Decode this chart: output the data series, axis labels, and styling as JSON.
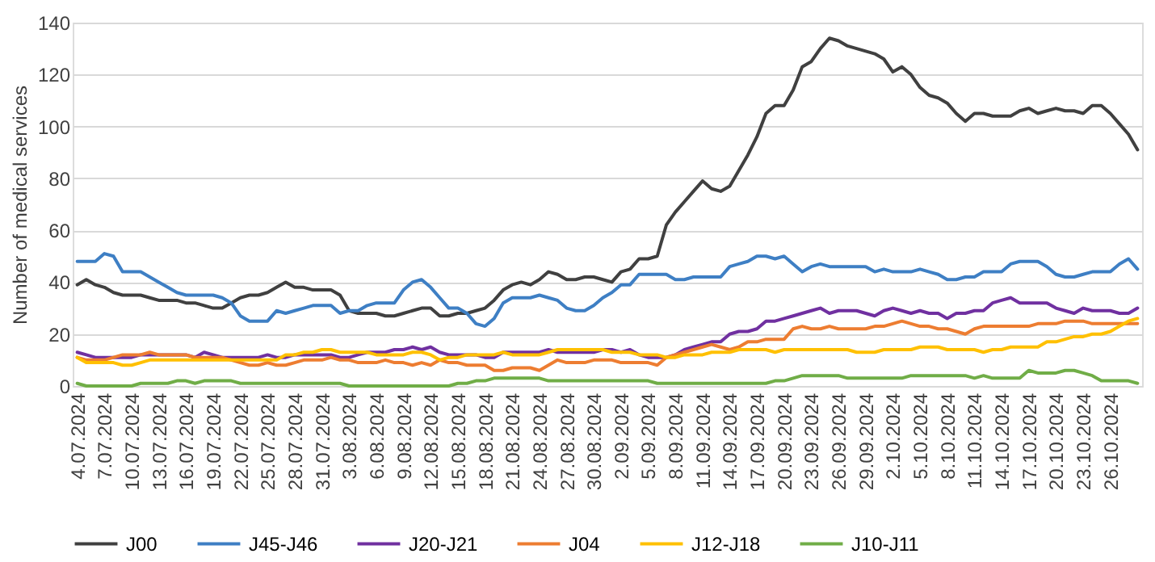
{
  "chart_data": {
    "type": "line",
    "ylabel": "Number of medical services",
    "categories": [
      "4.07.2024",
      null,
      null,
      "7.07.2024",
      null,
      null,
      "10.07.2024",
      null,
      null,
      "13.07.2024",
      null,
      null,
      "16.07.2024",
      null,
      null,
      "19.07.2024",
      null,
      null,
      "22.07.2024",
      null,
      null,
      "25.07.2024",
      null,
      null,
      "28.07.2024",
      null,
      null,
      "31.07.2024",
      null,
      null,
      "3.08.2024",
      null,
      null,
      "6.08.2024",
      null,
      null,
      "9.08.2024",
      null,
      null,
      "12.08.2024",
      null,
      null,
      "15.08.2024",
      null,
      null,
      "18.08.2024",
      null,
      null,
      "21.08.2024",
      null,
      null,
      "24.08.2024",
      null,
      null,
      "27.08.2024",
      null,
      null,
      "30.08.2024",
      null,
      null,
      "2.09.2024",
      null,
      null,
      "5.09.2024",
      null,
      null,
      "8.09.2024",
      null,
      null,
      "11.09.2024",
      null,
      null,
      "14.09.2024",
      null,
      null,
      "17.09.2024",
      null,
      null,
      "20.09.2024",
      null,
      null,
      "23.09.2024",
      null,
      null,
      "26.09.2024",
      null,
      null,
      "29.09.2024",
      null,
      null,
      "2.10.2024",
      null,
      null,
      "5.10.2024",
      null,
      null,
      "8.10.2024",
      null,
      null,
      "11.10.2024",
      null,
      null,
      "14.10.2024",
      null,
      null,
      "17.10.2024",
      null,
      null,
      "20.10.2024",
      null,
      null,
      "23.10.2024",
      null,
      null,
      "26.10.2024",
      null,
      null,
      null
    ],
    "series": [
      {
        "name": "J00",
        "color": "#404040",
        "values": [
          39,
          41,
          39,
          38,
          36,
          35,
          35,
          35,
          34,
          33,
          33,
          33,
          32,
          32,
          31,
          30,
          30,
          32,
          34,
          35,
          35,
          36,
          38,
          40,
          38,
          38,
          37,
          37,
          37,
          35,
          29,
          28,
          28,
          28,
          27,
          27,
          28,
          29,
          30,
          30,
          27,
          27,
          28,
          28,
          29,
          30,
          33,
          37,
          39,
          40,
          39,
          41,
          44,
          43,
          41,
          41,
          42,
          42,
          41,
          40,
          44,
          45,
          49,
          49,
          50,
          62,
          67,
          71,
          75,
          79,
          76,
          75,
          77,
          83,
          89,
          96,
          105,
          108,
          108,
          114,
          123,
          125,
          130,
          134,
          133,
          131,
          130,
          129,
          128,
          126,
          121,
          123,
          120,
          115,
          112,
          111,
          109,
          105,
          102,
          105,
          105,
          104,
          104,
          104,
          106,
          107,
          105,
          106,
          107,
          106,
          106,
          105,
          108,
          108,
          105,
          101,
          97,
          91
        ]
      },
      {
        "name": "J45-J46",
        "color": "#3e7fc4",
        "values": [
          48,
          48,
          48,
          51,
          50,
          44,
          44,
          44,
          42,
          40,
          38,
          36,
          35,
          35,
          35,
          35,
          34,
          32,
          27,
          25,
          25,
          25,
          29,
          28,
          29,
          30,
          31,
          31,
          31,
          28,
          29,
          29,
          31,
          32,
          32,
          32,
          37,
          40,
          41,
          38,
          34,
          30,
          30,
          28,
          24,
          23,
          26,
          32,
          34,
          34,
          34,
          35,
          34,
          33,
          30,
          29,
          29,
          31,
          34,
          36,
          39,
          39,
          43,
          43,
          43,
          43,
          41,
          41,
          42,
          42,
          42,
          42,
          46,
          47,
          48,
          50,
          50,
          49,
          50,
          47,
          44,
          46,
          47,
          46,
          46,
          46,
          46,
          46,
          44,
          45,
          44,
          44,
          44,
          45,
          44,
          43,
          41,
          41,
          42,
          42,
          44,
          44,
          44,
          47,
          48,
          48,
          48,
          46,
          43,
          42,
          42,
          43,
          44,
          44,
          44,
          47,
          49,
          45
        ]
      },
      {
        "name": "J20-J21",
        "color": "#7030a0",
        "values": [
          13,
          12,
          11,
          11,
          11,
          11,
          11,
          12,
          12,
          12,
          12,
          12,
          12,
          11,
          13,
          12,
          11,
          11,
          11,
          11,
          11,
          12,
          11,
          11,
          12,
          12,
          12,
          12,
          12,
          11,
          11,
          12,
          13,
          13,
          13,
          14,
          14,
          15,
          14,
          15,
          13,
          12,
          12,
          12,
          12,
          11,
          11,
          13,
          13,
          13,
          13,
          13,
          14,
          13,
          13,
          13,
          13,
          13,
          14,
          14,
          13,
          14,
          12,
          11,
          11,
          11,
          12,
          14,
          15,
          16,
          17,
          17,
          20,
          21,
          21,
          22,
          25,
          25,
          26,
          27,
          28,
          29,
          30,
          28,
          29,
          29,
          29,
          28,
          27,
          29,
          30,
          29,
          28,
          29,
          28,
          28,
          26,
          28,
          28,
          29,
          29,
          32,
          33,
          34,
          32,
          32,
          32,
          32,
          30,
          29,
          28,
          30,
          29,
          29,
          29,
          28,
          28,
          30
        ]
      },
      {
        "name": "J04",
        "color": "#ed7d31",
        "values": [
          11,
          10,
          10,
          10,
          11,
          12,
          12,
          12,
          13,
          12,
          12,
          12,
          12,
          11,
          11,
          11,
          11,
          10,
          9,
          8,
          8,
          9,
          8,
          8,
          9,
          10,
          10,
          10,
          11,
          10,
          10,
          9,
          9,
          9,
          10,
          9,
          9,
          8,
          9,
          8,
          10,
          9,
          9,
          8,
          8,
          8,
          6,
          6,
          7,
          7,
          7,
          6,
          8,
          10,
          9,
          9,
          9,
          10,
          10,
          10,
          9,
          9,
          9,
          9,
          8,
          11,
          12,
          13,
          14,
          15,
          16,
          15,
          14,
          15,
          17,
          17,
          18,
          18,
          18,
          22,
          23,
          22,
          22,
          23,
          22,
          22,
          22,
          22,
          23,
          23,
          24,
          25,
          24,
          23,
          23,
          22,
          22,
          21,
          20,
          22,
          23,
          23,
          23,
          23,
          23,
          23,
          24,
          24,
          24,
          25,
          25,
          25,
          24,
          24,
          24,
          24,
          24,
          24
        ]
      },
      {
        "name": "J12-J18",
        "color": "#ffc000",
        "values": [
          11,
          9,
          9,
          9,
          9,
          8,
          8,
          9,
          10,
          10,
          10,
          10,
          10,
          10,
          10,
          10,
          10,
          10,
          10,
          10,
          10,
          10,
          10,
          12,
          12,
          13,
          13,
          14,
          14,
          13,
          13,
          13,
          13,
          12,
          12,
          12,
          12,
          13,
          13,
          12,
          10,
          11,
          11,
          12,
          12,
          12,
          12,
          13,
          12,
          12,
          12,
          12,
          13,
          14,
          14,
          14,
          14,
          14,
          14,
          13,
          13,
          13,
          12,
          12,
          12,
          11,
          11,
          12,
          12,
          12,
          13,
          13,
          13,
          14,
          14,
          14,
          14,
          13,
          14,
          14,
          14,
          14,
          14,
          14,
          14,
          14,
          13,
          13,
          13,
          14,
          14,
          14,
          14,
          15,
          15,
          15,
          14,
          14,
          14,
          14,
          13,
          14,
          14,
          15,
          15,
          15,
          15,
          17,
          17,
          18,
          19,
          19,
          20,
          20,
          21,
          23,
          25,
          26
        ]
      },
      {
        "name": "J10-J11",
        "color": "#70ad47",
        "values": [
          1,
          0,
          0,
          0,
          0,
          0,
          0,
          1,
          1,
          1,
          1,
          2,
          2,
          1,
          2,
          2,
          2,
          2,
          1,
          1,
          1,
          1,
          1,
          1,
          1,
          1,
          1,
          1,
          1,
          1,
          0,
          0,
          0,
          0,
          0,
          0,
          0,
          0,
          0,
          0,
          0,
          0,
          1,
          1,
          2,
          2,
          3,
          3,
          3,
          3,
          3,
          3,
          2,
          2,
          2,
          2,
          2,
          2,
          2,
          2,
          2,
          2,
          2,
          2,
          1,
          1,
          1,
          1,
          1,
          1,
          1,
          1,
          1,
          1,
          1,
          1,
          1,
          2,
          2,
          3,
          4,
          4,
          4,
          4,
          4,
          3,
          3,
          3,
          3,
          3,
          3,
          3,
          4,
          4,
          4,
          4,
          4,
          4,
          4,
          3,
          4,
          3,
          3,
          3,
          3,
          6,
          5,
          5,
          5,
          6,
          6,
          5,
          4,
          2,
          2,
          2,
          2,
          1
        ]
      }
    ],
    "ylim": [
      0,
      140
    ],
    "yticks": [
      0,
      20,
      40,
      60,
      80,
      100,
      120,
      140
    ],
    "grid": "y",
    "legend": "bottom",
    "line_style": "solid",
    "marker": "none"
  }
}
